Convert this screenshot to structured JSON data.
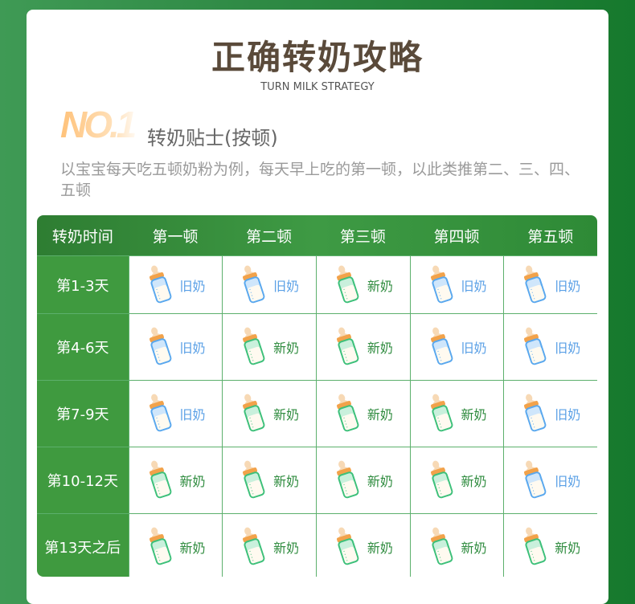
{
  "title": "正确转奶攻略",
  "subtitle": "TURN MILK STRATEGY",
  "badge": "NO.1",
  "tip_title": "转奶贴士(按顿)",
  "description": "以宝宝每天吃五顿奶粉为例，每天早上吃的第一顿，以此类推第二、三、四、五顿",
  "colors": {
    "old": "#5aa0e6",
    "new": "#2e8b3e",
    "header": "#2e7d32"
  },
  "labels": {
    "old": "旧奶",
    "new": "新奶"
  },
  "table": {
    "headers": [
      "转奶时间",
      "第一顿",
      "第二顿",
      "第三顿",
      "第四顿",
      "第五顿"
    ],
    "rows": [
      {
        "label": "第1-3天",
        "cells": [
          "old",
          "old",
          "new",
          "old",
          "old"
        ]
      },
      {
        "label": "第4-6天",
        "cells": [
          "old",
          "new",
          "new",
          "old",
          "old"
        ]
      },
      {
        "label": "第7-9天",
        "cells": [
          "old",
          "new",
          "new",
          "new",
          "old"
        ]
      },
      {
        "label": "第10-12天",
        "cells": [
          "new",
          "new",
          "new",
          "new",
          "old"
        ]
      },
      {
        "label": "第13天之后",
        "cells": [
          "new",
          "new",
          "new",
          "new",
          "new"
        ]
      }
    ]
  }
}
